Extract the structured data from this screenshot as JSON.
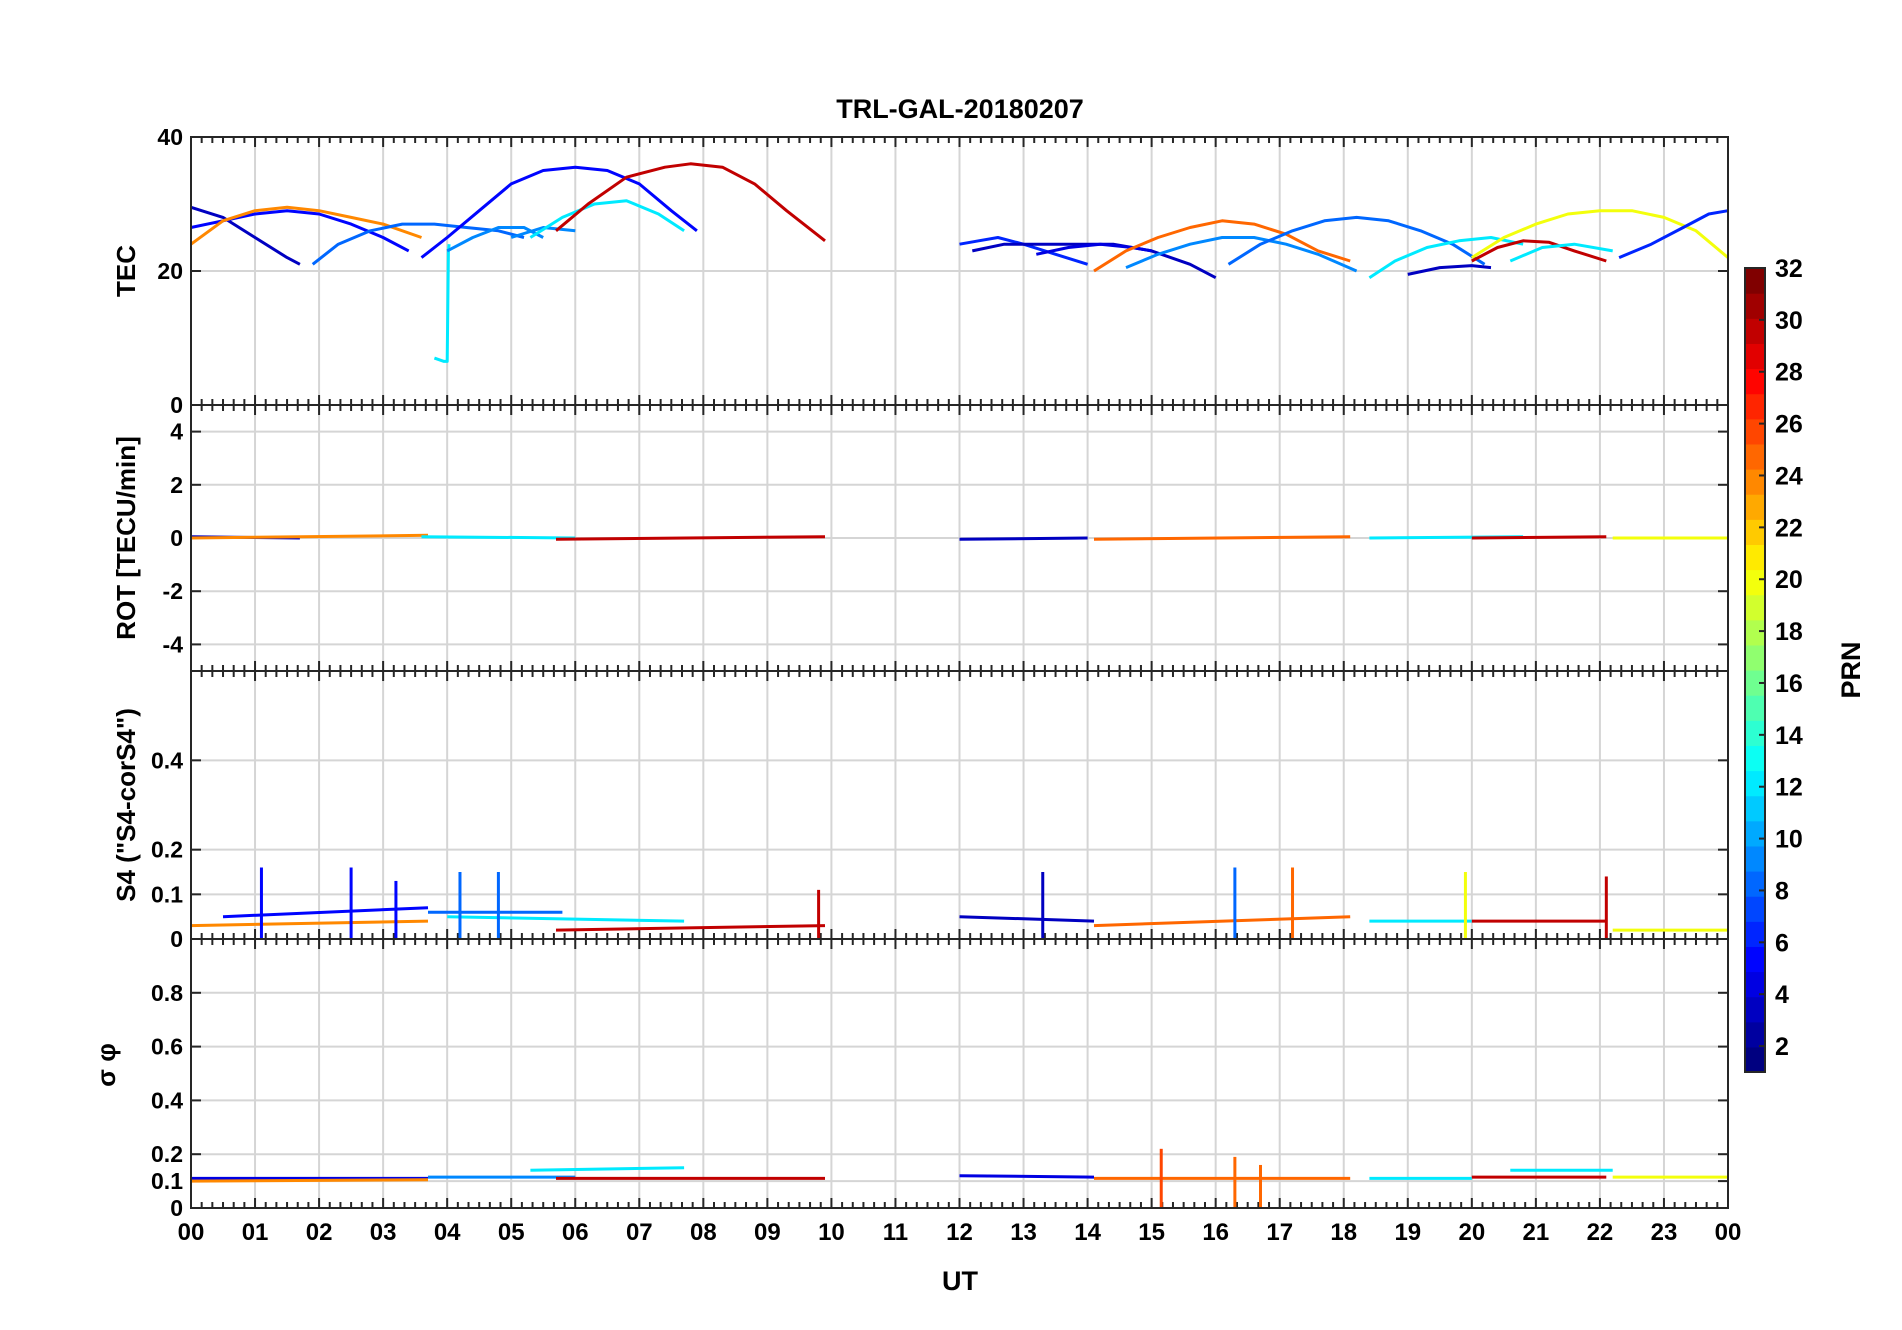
{
  "chart_data": {
    "type": "line",
    "title": "TRL-GAL-20180207",
    "xlabel": "UT",
    "x_ticks": [
      "00",
      "01",
      "02",
      "03",
      "04",
      "05",
      "06",
      "07",
      "08",
      "09",
      "10",
      "11",
      "12",
      "13",
      "14",
      "15",
      "16",
      "17",
      "18",
      "19",
      "20",
      "21",
      "22",
      "23",
      "00"
    ],
    "xlim": [
      0,
      24
    ],
    "grid": true,
    "colorbar": {
      "label": "PRN",
      "range": [
        1,
        32
      ],
      "ticks": [
        "2",
        "4",
        "6",
        "8",
        "10",
        "12",
        "14",
        "16",
        "18",
        "20",
        "22",
        "24",
        "26",
        "28",
        "30",
        "32"
      ],
      "colormap": "jet"
    },
    "panels": [
      {
        "name": "tec",
        "ylabel": "TEC",
        "ylim": [
          0,
          40
        ],
        "yticks": [
          "0",
          "20",
          "40"
        ],
        "ytick_values": [
          0,
          20,
          40
        ],
        "series": [
          {
            "prn": 3,
            "x": [
              0.0,
              0.5,
              1.0,
              1.5,
              1.7
            ],
            "y": [
              29.5,
              28,
              25,
              22,
              21
            ]
          },
          {
            "prn": 5,
            "x": [
              0.0,
              0.5,
              1.0,
              1.5,
              2.0,
              2.5,
              3.0,
              3.4
            ],
            "y": [
              26.5,
              27.5,
              28.5,
              29,
              28.5,
              27,
              25,
              23
            ]
          },
          {
            "prn": 24,
            "x": [
              0.0,
              0.5,
              1.0,
              1.5,
              2.0,
              2.5,
              3.0,
              3.6
            ],
            "y": [
              24,
              27.5,
              29,
              29.5,
              29,
              28,
              27,
              25
            ]
          },
          {
            "prn": 8,
            "x": [
              1.9,
              2.3,
              2.8,
              3.3,
              3.8,
              4.3,
              4.8,
              5.2
            ],
            "y": [
              21,
              24,
              26,
              27,
              27,
              26.5,
              26,
              25
            ]
          },
          {
            "prn": 12,
            "x": [
              3.8,
              3.95,
              4.0,
              4.02,
              4.03
            ],
            "y": [
              7,
              6.5,
              6.5,
              23,
              24
            ]
          },
          {
            "prn": 9,
            "x": [
              4.0,
              4.4,
              4.8,
              5.2,
              5.5
            ],
            "y": [
              23,
              25,
              26.5,
              26.5,
              25
            ]
          },
          {
            "prn": 5,
            "x": [
              3.6,
              4.0,
              4.5,
              5.0,
              5.5,
              6.0,
              6.5,
              7.0,
              7.5,
              7.9
            ],
            "y": [
              22,
              25,
              29,
              33,
              35,
              35.5,
              35,
              33,
              29,
              26
            ]
          },
          {
            "prn": 9,
            "x": [
              5.0,
              5.5,
              6.0
            ],
            "y": [
              25,
              26.5,
              26
            ]
          },
          {
            "prn": 12,
            "x": [
              5.3,
              5.8,
              6.3,
              6.8,
              7.3,
              7.7
            ],
            "y": [
              25,
              28,
              30,
              30.5,
              28.5,
              26
            ]
          },
          {
            "prn": 30,
            "x": [
              5.7,
              6.2,
              6.8,
              7.4,
              7.8,
              8.3,
              8.8,
              9.3,
              9.9
            ],
            "y": [
              26,
              30,
              34,
              35.5,
              36,
              35.5,
              33,
              29,
              24.5
            ]
          },
          {
            "prn": 6,
            "x": [
              12.0,
              12.3,
              12.6,
              13.0,
              13.5,
              14.0
            ],
            "y": [
              24,
              24.5,
              25,
              24,
              22.5,
              21
            ]
          },
          {
            "prn": 3,
            "x": [
              12.2,
              12.7,
              13.2,
              13.8,
              14.4,
              15.0,
              15.6,
              16.0
            ],
            "y": [
              23,
              24,
              24,
              24,
              24,
              23,
              21,
              19
            ]
          },
          {
            "prn": 4,
            "x": [
              13.2,
              13.7,
              14.2,
              14.7,
              15.0
            ],
            "y": [
              22.5,
              23.5,
              24,
              23.5,
              23
            ]
          },
          {
            "prn": 25,
            "x": [
              14.1,
              14.6,
              15.1,
              15.6,
              16.1,
              16.6,
              17.1,
              17.6,
              18.1
            ],
            "y": [
              20,
              23,
              25,
              26.5,
              27.5,
              27,
              25.5,
              23,
              21.5
            ]
          },
          {
            "prn": 9,
            "x": [
              14.6,
              15.1,
              15.6,
              16.1,
              16.6,
              17.1,
              17.6,
              18.2
            ],
            "y": [
              20.5,
              22.5,
              24,
              25,
              25,
              24,
              22.5,
              20
            ]
          },
          {
            "prn": 8,
            "x": [
              16.2,
              16.7,
              17.2,
              17.7,
              18.2,
              18.7,
              19.2,
              19.7,
              20.2
            ],
            "y": [
              21,
              24,
              26,
              27.5,
              28,
              27.5,
              26,
              24,
              21
            ]
          },
          {
            "prn": 12,
            "x": [
              18.4,
              18.8,
              19.3,
              19.8,
              20.3,
              20.8
            ],
            "y": [
              19,
              21.5,
              23.5,
              24.5,
              25,
              24
            ]
          },
          {
            "prn": 3,
            "x": [
              19.0,
              19.5,
              20.0,
              20.3
            ],
            "y": [
              19.5,
              20.5,
              20.8,
              20.5
            ]
          },
          {
            "prn": 30,
            "x": [
              20.0,
              20.4,
              20.8,
              21.2,
              21.6,
              22.1
            ],
            "y": [
              21.5,
              23.5,
              24.5,
              24.3,
              23,
              21.5
            ]
          },
          {
            "prn": 12,
            "x": [
              20.6,
              21.1,
              21.6,
              22.2
            ],
            "y": [
              21.5,
              23.5,
              24,
              23
            ]
          },
          {
            "prn": 20,
            "x": [
              20.0,
              20.5,
              21.0,
              21.5,
              22.0,
              22.5,
              23.0,
              23.5,
              24.0
            ],
            "y": [
              22,
              25,
              27,
              28.5,
              29,
              29,
              28,
              26,
              22
            ]
          },
          {
            "prn": 6,
            "x": [
              22.3,
              22.8,
              23.3,
              23.7,
              24.0
            ],
            "y": [
              22,
              24,
              26.5,
              28.5,
              29
            ]
          }
        ]
      },
      {
        "name": "rot",
        "ylabel": "ROT [TECU/min]",
        "ylim": [
          -5,
          5
        ],
        "yticks": [
          "-4",
          "-2",
          "0",
          "2",
          "4"
        ],
        "ytick_values": [
          -4,
          -2,
          0,
          2,
          4
        ],
        "series": [
          {
            "prn": 3,
            "x": [
              0.0,
              1.7
            ],
            "y": [
              0.05,
              0.0
            ]
          },
          {
            "prn": 24,
            "x": [
              0.0,
              3.7
            ],
            "y": [
              0.0,
              0.1
            ]
          },
          {
            "prn": 12,
            "x": [
              3.6,
              6.0
            ],
            "y": [
              0.05,
              0.0
            ]
          },
          {
            "prn": 30,
            "x": [
              5.7,
              9.9
            ],
            "y": [
              -0.05,
              0.05
            ]
          },
          {
            "prn": 3,
            "x": [
              12.0,
              14.0
            ],
            "y": [
              -0.05,
              0.0
            ]
          },
          {
            "prn": 25,
            "x": [
              14.1,
              18.1
            ],
            "y": [
              -0.05,
              0.05
            ]
          },
          {
            "prn": 12,
            "x": [
              18.4,
              20.8
            ],
            "y": [
              0.0,
              0.05
            ]
          },
          {
            "prn": 30,
            "x": [
              20.0,
              22.1
            ],
            "y": [
              0.0,
              0.05
            ]
          },
          {
            "prn": 20,
            "x": [
              22.2,
              24.0
            ],
            "y": [
              0.0,
              0.0
            ]
          }
        ]
      },
      {
        "name": "s4",
        "ylabel": "S4 (\"S4-corS4\")",
        "ylim": [
          0,
          0.6
        ],
        "yticks": [
          "0",
          "0.1",
          "0.2",
          "0.4"
        ],
        "ytick_values": [
          0,
          0.1,
          0.2,
          0.4
        ],
        "series": [
          {
            "prn": 24,
            "x": [
              0.0,
              3.7
            ],
            "y": [
              0.03,
              0.04
            ]
          },
          {
            "prn": 5,
            "x": [
              0.5,
              3.7
            ],
            "y": [
              0.05,
              0.07
            ]
          },
          {
            "prn": 8,
            "x": [
              3.7,
              5.8
            ],
            "y": [
              0.06,
              0.06
            ]
          },
          {
            "prn": 12,
            "x": [
              4.0,
              7.7
            ],
            "y": [
              0.05,
              0.04
            ]
          },
          {
            "prn": 30,
            "x": [
              5.7,
              9.9
            ],
            "y": [
              0.02,
              0.03
            ]
          },
          {
            "prn": 3,
            "x": [
              12.0,
              14.1
            ],
            "y": [
              0.05,
              0.04
            ]
          },
          {
            "prn": 25,
            "x": [
              14.1,
              18.1
            ],
            "y": [
              0.03,
              0.05
            ]
          },
          {
            "prn": 12,
            "x": [
              18.4,
              20.0
            ],
            "y": [
              0.04,
              0.04
            ]
          },
          {
            "prn": 30,
            "x": [
              20.0,
              22.1
            ],
            "y": [
              0.04,
              0.04
            ]
          },
          {
            "prn": 20,
            "x": [
              22.2,
              24.0
            ],
            "y": [
              0.02,
              0.02
            ]
          }
        ],
        "spikes": [
          {
            "prn": 5,
            "x": 1.1,
            "y": 0.16
          },
          {
            "prn": 5,
            "x": 2.5,
            "y": 0.16
          },
          {
            "prn": 5,
            "x": 3.2,
            "y": 0.13
          },
          {
            "prn": 8,
            "x": 4.2,
            "y": 0.15
          },
          {
            "prn": 8,
            "x": 4.8,
            "y": 0.15
          },
          {
            "prn": 30,
            "x": 9.8,
            "y": 0.11
          },
          {
            "prn": 3,
            "x": 13.3,
            "y": 0.15
          },
          {
            "prn": 8,
            "x": 16.3,
            "y": 0.16
          },
          {
            "prn": 25,
            "x": 17.2,
            "y": 0.16
          },
          {
            "prn": 20,
            "x": 19.9,
            "y": 0.15
          },
          {
            "prn": 30,
            "x": 22.1,
            "y": 0.14
          }
        ]
      },
      {
        "name": "sigma",
        "ylabel": "σ φ",
        "ylim": [
          0,
          1
        ],
        "yticks": [
          "0",
          "0.1",
          "0.2",
          "0.4",
          "0.6",
          "0.8"
        ],
        "ytick_values": [
          0,
          0.1,
          0.2,
          0.4,
          0.6,
          0.8
        ],
        "series": [
          {
            "prn": 4,
            "x": [
              0.0,
              3.7
            ],
            "y": [
              0.11,
              0.11
            ]
          },
          {
            "prn": 24,
            "x": [
              0.0,
              3.7
            ],
            "y": [
              0.1,
              0.105
            ]
          },
          {
            "prn": 9,
            "x": [
              3.7,
              6.0
            ],
            "y": [
              0.115,
              0.115
            ]
          },
          {
            "prn": 12,
            "x": [
              5.3,
              7.7
            ],
            "y": [
              0.14,
              0.15
            ]
          },
          {
            "prn": 30,
            "x": [
              5.7,
              9.9
            ],
            "y": [
              0.11,
              0.11
            ]
          },
          {
            "prn": 4,
            "x": [
              12.0,
              14.1
            ],
            "y": [
              0.12,
              0.115
            ]
          },
          {
            "prn": 25,
            "x": [
              14.1,
              18.1
            ],
            "y": [
              0.11,
              0.11
            ]
          },
          {
            "prn": 12,
            "x": [
              18.4,
              20.0
            ],
            "y": [
              0.11,
              0.11
            ]
          },
          {
            "prn": 30,
            "x": [
              20.0,
              22.1
            ],
            "y": [
              0.115,
              0.115
            ]
          },
          {
            "prn": 12,
            "x": [
              20.6,
              22.2
            ],
            "y": [
              0.14,
              0.14
            ]
          },
          {
            "prn": 20,
            "x": [
              22.2,
              24.0
            ],
            "y": [
              0.115,
              0.115
            ]
          }
        ],
        "spikes": [
          {
            "prn": 26,
            "x": 15.15,
            "y": 0.22
          },
          {
            "prn": 25,
            "x": 16.3,
            "y": 0.19
          },
          {
            "prn": 25,
            "x": 16.7,
            "y": 0.16
          }
        ]
      }
    ]
  }
}
